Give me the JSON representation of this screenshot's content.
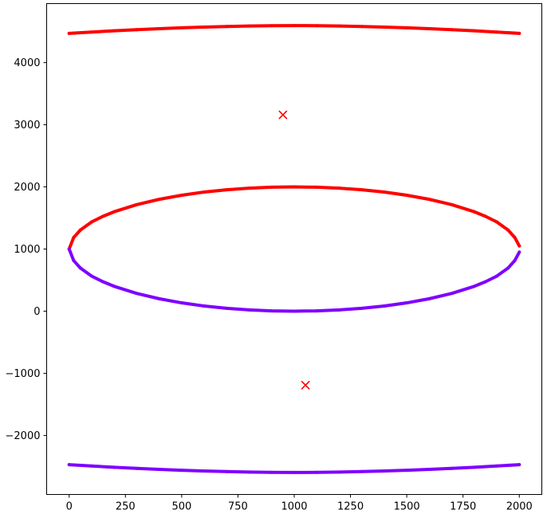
{
  "chart_data": {
    "type": "scatter",
    "title": "",
    "xlabel": "",
    "ylabel": "",
    "xlim": [
      -100,
      2100
    ],
    "ylim": [
      -2950,
      4950
    ],
    "grid": false,
    "legend": "none",
    "x_ticks": [
      0,
      250,
      500,
      750,
      1000,
      1250,
      1500,
      1750,
      2000
    ],
    "x_tick_labels": [
      "0",
      "250",
      "500",
      "750",
      "1000",
      "1250",
      "1500",
      "1750",
      "2000"
    ],
    "y_ticks": [
      -2000,
      -1000,
      0,
      1000,
      2000,
      3000,
      4000
    ],
    "y_tick_labels": [
      "−2000",
      "−1000",
      "0",
      "1000",
      "2000",
      "3000",
      "4000"
    ],
    "series": [
      {
        "kind": "points",
        "color": "#ff0000",
        "description_points": "upper arc near y≈4500",
        "x": [
          0,
          100,
          200,
          300,
          400,
          500,
          600,
          700,
          800,
          900,
          1000,
          1100,
          1200,
          1300,
          1400,
          1500,
          1600,
          1700,
          1800,
          1900,
          2000
        ],
        "y": [
          4470,
          4492,
          4512,
          4530,
          4546,
          4560,
          4572,
          4582,
          4589,
          4594,
          4596,
          4594,
          4589,
          4582,
          4572,
          4560,
          4546,
          4530,
          4512,
          4492,
          4470
        ]
      },
      {
        "kind": "points",
        "color": "#ff0000",
        "x": [
          0,
          20,
          50,
          100,
          150,
          200,
          300,
          400,
          500,
          600,
          700,
          800,
          900,
          1000,
          1100,
          1200,
          1300,
          1400,
          1500,
          1600,
          1700,
          1800,
          1850,
          1900,
          1950,
          1980,
          2000
        ],
        "y": [
          1000,
          1185,
          1306,
          1436,
          1526,
          1600,
          1714,
          1800,
          1866,
          1917,
          1954,
          1980,
          1995,
          2000,
          1995,
          1980,
          1954,
          1917,
          1866,
          1800,
          1714,
          1600,
          1526,
          1436,
          1306,
          1185,
          1050
        ]
      },
      {
        "kind": "points",
        "color": "#7f00ff",
        "x": [
          0,
          20,
          50,
          100,
          150,
          200,
          300,
          400,
          500,
          600,
          700,
          800,
          900,
          1000,
          1100,
          1200,
          1300,
          1400,
          1500,
          1600,
          1700,
          1800,
          1850,
          1900,
          1950,
          1980,
          2000
        ],
        "y": [
          1000,
          815,
          694,
          564,
          474,
          400,
          286,
          200,
          134,
          83,
          46,
          20,
          5,
          0,
          5,
          20,
          46,
          83,
          134,
          200,
          286,
          400,
          474,
          564,
          694,
          815,
          950
        ]
      },
      {
        "kind": "points",
        "color": "#7f00ff",
        "x": [
          0,
          100,
          200,
          300,
          400,
          500,
          600,
          700,
          800,
          900,
          1000,
          1100,
          1200,
          1300,
          1400,
          1500,
          1600,
          1700,
          1800,
          1900,
          2000
        ],
        "y": [
          -2470,
          -2492,
          -2512,
          -2530,
          -2546,
          -2560,
          -2572,
          -2582,
          -2589,
          -2594,
          -2596,
          -2594,
          -2589,
          -2582,
          -2572,
          -2560,
          -2546,
          -2530,
          -2512,
          -2492,
          -2470
        ]
      },
      {
        "kind": "marker-x",
        "color": "#ff0000",
        "x": [
          950,
          1050
        ],
        "y": [
          3160,
          -1190
        ]
      }
    ]
  }
}
